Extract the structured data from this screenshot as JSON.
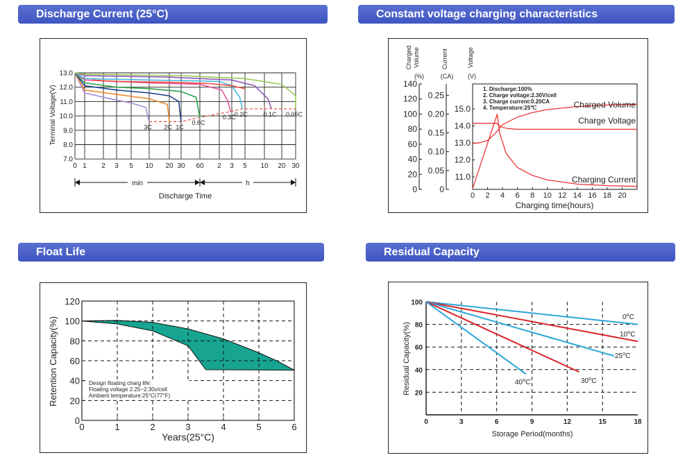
{
  "headers": {
    "discharge": "Discharge Current (25°C)",
    "cv": "Constant voltage charging characteristics",
    "float": "Float Life",
    "residual": "Residual Capacity"
  },
  "charts": {
    "discharge": {
      "chart_data": {
        "type": "line",
        "ylabel": "Terminal Voltage(V)",
        "xlabel": "Discharge Time",
        "ylim": [
          7.0,
          13.0
        ],
        "y_ticks": [
          "13.0",
          "12.0",
          "11.0",
          "10.0",
          "9.0",
          "8.0",
          "7.0"
        ],
        "x_ticks": [
          "0",
          "1",
          "2",
          "3",
          "5",
          "10",
          "20",
          "30",
          "60",
          "2",
          "3",
          "5",
          "10",
          "20",
          "30"
        ],
        "unit_min": "min",
        "unit_h": "h",
        "series": [
          {
            "name": "3C",
            "color": "#a78bd6",
            "points": [
              [
                0,
                13.0
              ],
              [
                1,
                11.6
              ],
              [
                2,
                11.3
              ],
              [
                3,
                11.1
              ],
              [
                4,
                10.9
              ],
              [
                4.8,
                10.6
              ],
              [
                5,
                9.6
              ]
            ]
          },
          {
            "name": "2C",
            "color": "#f08b2e",
            "points": [
              [
                0,
                13.0
              ],
              [
                1,
                11.8
              ],
              [
                3,
                11.5
              ],
              [
                5,
                11.2
              ],
              [
                5.9,
                10.8
              ],
              [
                6,
                9.6
              ]
            ]
          },
          {
            "name": "1C",
            "color": "#1c3f8c",
            "points": [
              [
                0,
                13.0
              ],
              [
                1,
                12.1
              ],
              [
                3,
                11.8
              ],
              [
                5,
                11.6
              ],
              [
                6,
                11.4
              ],
              [
                6.8,
                11.0
              ],
              [
                7,
                9.6
              ]
            ]
          },
          {
            "name": "0.6C",
            "color": "#2ca24a",
            "points": [
              [
                0,
                13.0
              ],
              [
                1,
                12.3
              ],
              [
                3,
                12.0
              ],
              [
                5,
                11.9
              ],
              [
                7,
                11.7
              ],
              [
                7.8,
                11.3
              ],
              [
                8,
                9.9
              ]
            ]
          },
          {
            "name": "0.3C",
            "color": "#e6529a",
            "points": [
              [
                0,
                13.0
              ],
              [
                1,
                12.5
              ],
              [
                5,
                12.3
              ],
              [
                8,
                12.2
              ],
              [
                9.2,
                11.8
              ],
              [
                9.7,
                11.0
              ],
              [
                9.9,
                10.3
              ]
            ]
          },
          {
            "name": "0.2C",
            "color": "#47b8e0",
            "points": [
              [
                0,
                13.0
              ],
              [
                1,
                12.6
              ],
              [
                5,
                12.5
              ],
              [
                9,
                12.4
              ],
              [
                10,
                12.1
              ],
              [
                10.6,
                11.3
              ],
              [
                10.8,
                10.5
              ]
            ]
          },
          {
            "name": "0.1C",
            "color": "#8a5bb8",
            "points": [
              [
                0,
                13.0
              ],
              [
                1,
                12.8
              ],
              [
                6,
                12.7
              ],
              [
                10,
                12.5
              ],
              [
                11.5,
                12.1
              ],
              [
                12.2,
                11.2
              ],
              [
                12.4,
                10.5
              ]
            ]
          },
          {
            "name": "0.05C",
            "color": "#9dc85a",
            "points": [
              [
                0,
                13.0
              ],
              [
                1,
                12.9
              ],
              [
                7,
                12.8
              ],
              [
                11,
                12.6
              ],
              [
                13,
                12.2
              ],
              [
                14,
                11.4
              ],
              [
                14.3,
                10.5
              ]
            ]
          },
          {
            "name": "",
            "color": "#e94a3a",
            "points": [
              [
                1.4,
                12.5
              ],
              [
                3,
                12.4
              ],
              [
                6,
                12.35
              ],
              [
                8.5,
                12.25
              ],
              [
                10,
                12.1
              ],
              [
                11,
                11.9
              ]
            ]
          }
        ],
        "cutoff": [
          [
            5,
            9.6
          ],
          [
            6,
            9.6
          ],
          [
            7,
            9.6
          ],
          [
            8,
            9.9
          ],
          [
            9.9,
            10.3
          ],
          [
            10.8,
            10.5
          ],
          [
            12.4,
            10.5
          ],
          [
            14.3,
            10.5
          ]
        ]
      }
    },
    "cv": {
      "chart_data": {
        "type": "line",
        "xlabel": "Charging time(hours)",
        "xlim": [
          0,
          22
        ],
        "x_ticks": [
          "0",
          "2",
          "4",
          "6",
          "8",
          "10",
          "12",
          "14",
          "16",
          "18",
          "20"
        ],
        "axis_titles": {
          "volume": "Charged Volume (%)",
          "current": "Current (CA)",
          "voltage": "Voltage (V)"
        },
        "axis_title_text": {
          "vol_1": "Charged",
          "vol_2": "Volume",
          "vol_3": "(%)",
          "cur_1": "Current",
          "cur_2": "(CA)",
          "vlt_1": "Voltage",
          "vlt_2": "(V)"
        },
        "vol_ticks": [
          "140",
          "120",
          "100",
          "80",
          "60",
          "40",
          "20",
          "0"
        ],
        "cur_ticks": [
          "0.25",
          "0.20",
          "0.15",
          "0.10",
          "0.05",
          "0"
        ],
        "volt_ticks": [
          "15.0",
          "14.0",
          "13.0",
          "12.0",
          "11.0"
        ],
        "notes": [
          "1. Discharge:100%",
          "2. Charge voltage:2.30V/cell",
          "3. Charge current:0.20CA",
          "4. Temperature:25℃"
        ],
        "series": [
          {
            "name": "Charged Volume",
            "points": [
              [
                0,
                61
              ],
              [
                1,
                62
              ],
              [
                2,
                65
              ],
              [
                3,
                74
              ],
              [
                4,
                86
              ],
              [
                6,
                96
              ],
              [
                8,
                102
              ],
              [
                10,
                106
              ],
              [
                14,
                110
              ],
              [
                18,
                112
              ],
              [
                22,
                113
              ]
            ]
          },
          {
            "name": "Charge Voltage",
            "points": [
              [
                0,
                14.15
              ],
              [
                3.2,
                14.15
              ],
              [
                3.8,
                13.95
              ],
              [
                4.6,
                13.85
              ],
              [
                6,
                13.8
              ],
              [
                22,
                13.8
              ]
            ]
          },
          {
            "name": "Charging Current",
            "points": [
              [
                0,
                0.002
              ],
              [
                3.3,
                0.2
              ],
              [
                3.6,
                0.15
              ],
              [
                4.5,
                0.095
              ],
              [
                6,
                0.058
              ],
              [
                8,
                0.037
              ],
              [
                10,
                0.025
              ],
              [
                14,
                0.014
              ],
              [
                18,
                0.01
              ],
              [
                22,
                0.008
              ]
            ]
          }
        ]
      }
    },
    "float": {
      "chart_data": {
        "type": "area",
        "ylabel": "Retention Capacity(%)",
        "xlabel": "Years(25°C)",
        "xlim": [
          0,
          6
        ],
        "ylim": [
          0,
          120
        ],
        "x_ticks": [
          "0",
          "1",
          "2",
          "3",
          "4",
          "5",
          "6"
        ],
        "y_ticks": [
          "120",
          "100",
          "80",
          "60",
          "40",
          "20",
          "0"
        ],
        "notes": [
          "Design floating charg life:",
          "Floating voltage 2.25~2.30v/cell",
          "Ambient temperature:25°C(77°F)"
        ],
        "upper": [
          [
            0,
            100
          ],
          [
            1,
            100.5
          ],
          [
            2,
            98.5
          ],
          [
            3,
            92
          ],
          [
            4,
            82
          ],
          [
            5,
            68
          ],
          [
            5.5,
            60
          ],
          [
            6,
            50.5
          ]
        ],
        "lower": [
          [
            0,
            100
          ],
          [
            1,
            97
          ],
          [
            2,
            90
          ],
          [
            3,
            75
          ],
          [
            3.5,
            51
          ]
        ],
        "fill_color": "#17a591"
      }
    },
    "residual": {
      "chart_data": {
        "type": "line",
        "ylabel": "Residual Capacity(%)",
        "xlabel": "Storage Period(months)",
        "xlim": [
          0,
          18
        ],
        "ylim": [
          0,
          100
        ],
        "x_ticks": [
          "0",
          "3",
          "6",
          "9",
          "12",
          "15",
          "18"
        ],
        "y_ticks": [
          "100",
          "80",
          "60",
          "40",
          "20"
        ],
        "series": [
          {
            "name": "0°C",
            "color": "#2aa6d8",
            "points": [
              [
                0,
                100
              ],
              [
                18,
                80
              ]
            ]
          },
          {
            "name": "10°C",
            "color": "#d9262c",
            "points": [
              [
                0,
                100
              ],
              [
                18,
                65
              ]
            ]
          },
          {
            "name": "25°C",
            "color": "#2aa6d8",
            "points": [
              [
                0,
                100
              ],
              [
                16,
                52
              ]
            ]
          },
          {
            "name": "30°C",
            "color": "#d9262c",
            "points": [
              [
                0,
                100
              ],
              [
                13,
                38
              ]
            ]
          },
          {
            "name": "40°C",
            "color": "#2aa6d8",
            "points": [
              [
                0,
                100
              ],
              [
                8.5,
                36
              ]
            ]
          }
        ],
        "label_text": {
          "s0": "0",
          "s1": "10",
          "s2": "25",
          "s3": "30",
          "s4": "40",
          "unit": "C",
          "deg": "o"
        }
      }
    }
  }
}
